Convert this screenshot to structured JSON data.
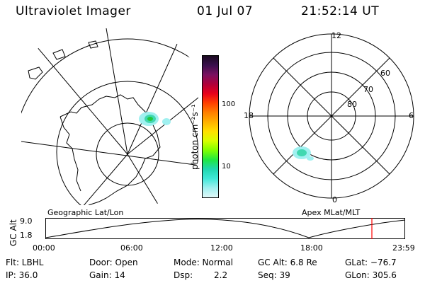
{
  "header": {
    "title": "Ultraviolet Imager",
    "date": "01 Jul 07",
    "time": "21:52:14 UT"
  },
  "colorbar": {
    "unit_label": "photon cm⁻²s⁻¹",
    "tick_100": "100",
    "tick_10": "10",
    "colors": [
      "#1a0a20",
      "#3a0f4d",
      "#7a1060",
      "#b0003a",
      "#e8001a",
      "#ff4000",
      "#ff8000",
      "#ffb000",
      "#ffe000",
      "#d8ff00",
      "#80ff00",
      "#20e840",
      "#20d8b0",
      "#40e8d8",
      "#a0f0f0",
      "#e0f8f8"
    ]
  },
  "geo_map": {
    "label": "Geographic Lat/Lon",
    "accent_color": "#40d8b0"
  },
  "apex_map": {
    "label": "Apex MLat/MLT",
    "mlt_labels": {
      "top": "12",
      "left": "18",
      "right": "6",
      "bottom": "0"
    },
    "lat_labels": [
      "60",
      "70",
      "80"
    ]
  },
  "altitude_plot": {
    "y_label": "GC Alt",
    "y_max": "9.0",
    "y_min": "1.8",
    "x_ticks": [
      "00:00",
      "06:00",
      "12:00",
      "18:00",
      "23:59"
    ],
    "marker_color": "#ff0000"
  },
  "info": {
    "filter": "Flt: LBHL",
    "ip": "IP: 36.0",
    "door": "Door: Open",
    "gain": "Gain: 14",
    "mode": "Mode: Normal",
    "dsp_label": "Dsp:",
    "dsp_value": "2.2",
    "gc_alt": "GC Alt: 6.8 Re",
    "seq": "Seq: 39",
    "glat": "GLat: −76.7",
    "glon": "GLon: 305.6"
  }
}
